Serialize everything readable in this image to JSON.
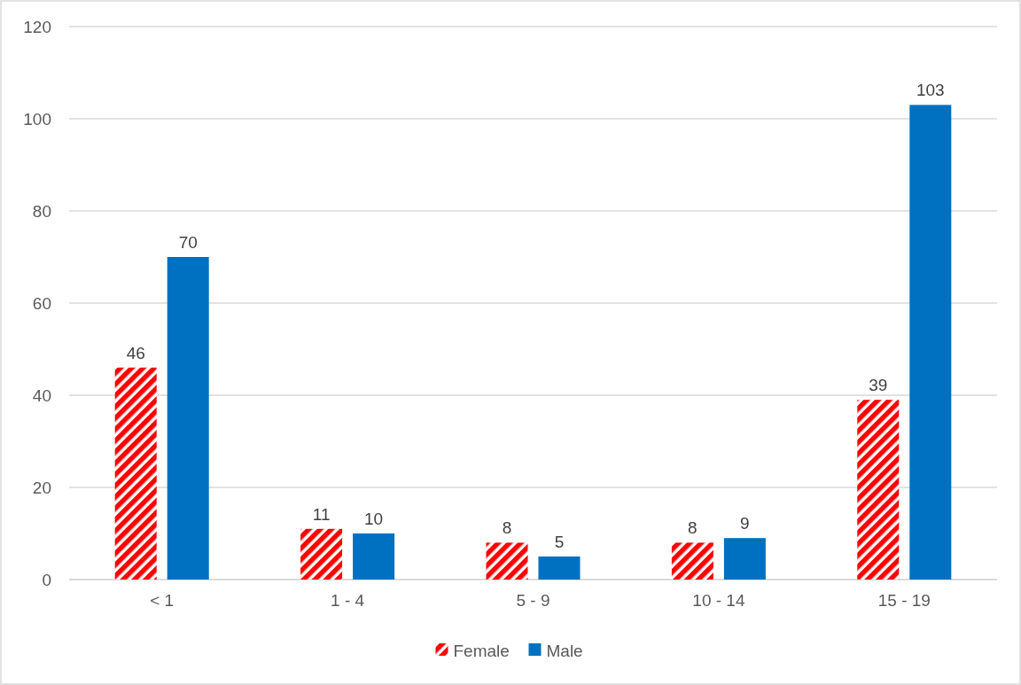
{
  "chart_data": {
    "type": "bar",
    "categories": [
      "< 1",
      "1 - 4",
      "5 - 9",
      "10 - 14",
      "15 - 19"
    ],
    "series": [
      {
        "name": "Female",
        "color": "#ff0000",
        "values": [
          46,
          11,
          8,
          8,
          39
        ]
      },
      {
        "name": "Male",
        "color": "#0070c0",
        "values": [
          70,
          10,
          5,
          9,
          103
        ]
      }
    ],
    "ylim": [
      0,
      120
    ],
    "yticks": [
      0,
      20,
      40,
      60,
      80,
      100,
      120
    ],
    "grid": "y",
    "legend": "bottom",
    "data_labels": true
  }
}
